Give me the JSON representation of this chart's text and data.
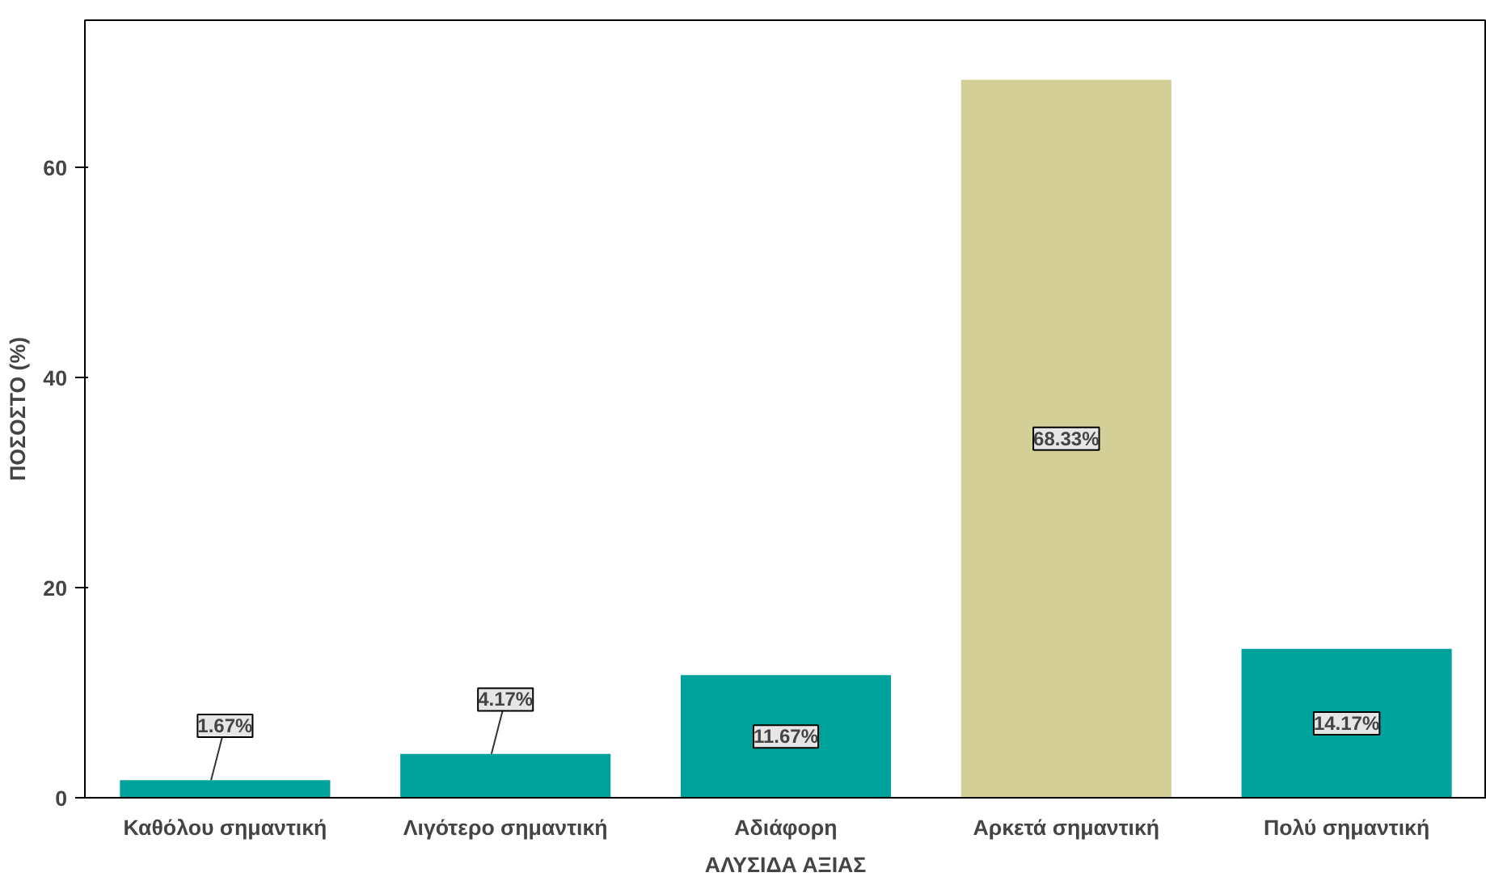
{
  "chart_data": {
    "type": "bar",
    "xlabel": "ΑΛΥΣΙΔΑ ΑΞΙΑΣ",
    "ylabel": "ΠΟΣΟΣΤΟ (%)",
    "categories": [
      "Καθόλου σημαντική",
      "Λιγότερο σημαντική",
      "Αδιάφορη",
      "Αρκετά σημαντική",
      "Πολύ σημαντική"
    ],
    "values": [
      1.67,
      4.17,
      11.67,
      68.33,
      14.17
    ],
    "colors": [
      "#00a39b",
      "#00a39b",
      "#00a39b",
      "#d3cf96",
      "#00a39b"
    ],
    "value_labels": [
      "1.67%",
      "4.17%",
      "11.67%",
      "68.33%",
      "14.17%"
    ],
    "ylim": [
      0,
      74
    ],
    "yticks": [
      0,
      20,
      40,
      60
    ],
    "grid": false
  }
}
